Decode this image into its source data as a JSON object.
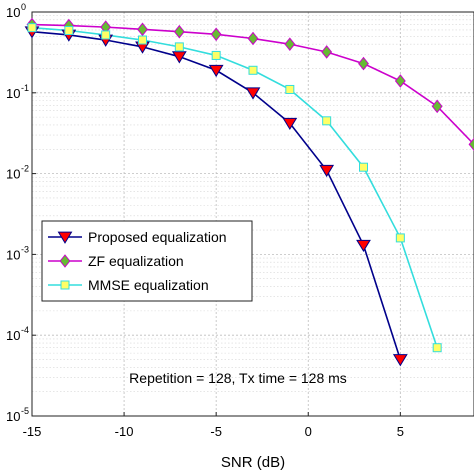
{
  "chart_data": {
    "type": "line",
    "xlabel": "SNR (dB)",
    "ylabel": "",
    "ylog": true,
    "xlim": [
      -15,
      9
    ],
    "ylim": [
      1e-05,
      1
    ],
    "xticks": [
      -15,
      -10,
      -5,
      0,
      5
    ],
    "xtick_labels": [
      "-15",
      "-10",
      "-5",
      "0",
      "5"
    ],
    "yticks": [
      {
        "value": 1,
        "base": "10",
        "exp": "0"
      },
      {
        "value": 0.1,
        "base": "10",
        "exp": "-1"
      },
      {
        "value": 0.01,
        "base": "10",
        "exp": "-2"
      },
      {
        "value": 0.001,
        "base": "10",
        "exp": "-3"
      },
      {
        "value": 0.0001,
        "base": "10",
        "exp": "-4"
      },
      {
        "value": 1e-05,
        "base": "10",
        "exp": "-5"
      }
    ],
    "grid": true,
    "legend_position": "middle-left",
    "annotation": "Repetition = 128, Tx time = 128 ms",
    "series": [
      {
        "name": "Proposed equalization",
        "color": "#00008B",
        "marker": "triangle-down",
        "marker_fill": "#ff0000",
        "x": [
          -15,
          -13,
          -11,
          -9,
          -7,
          -5,
          -3,
          -1,
          1,
          3,
          5
        ],
        "y": [
          0.57,
          0.52,
          0.45,
          0.37,
          0.28,
          0.19,
          0.1,
          0.042,
          0.011,
          0.0013,
          5e-05
        ]
      },
      {
        "name": "ZF equalization",
        "color": "#cc00cc",
        "marker": "diamond",
        "marker_fill": "#66bb33",
        "x": [
          -15,
          -13,
          -11,
          -9,
          -7,
          -5,
          -3,
          -1,
          1,
          3,
          5,
          7,
          9
        ],
        "y": [
          0.7,
          0.68,
          0.65,
          0.61,
          0.57,
          0.53,
          0.47,
          0.4,
          0.32,
          0.23,
          0.14,
          0.068,
          0.023
        ]
      },
      {
        "name": "MMSE equalization",
        "color": "#33dddd",
        "marker": "square",
        "marker_fill": "#ffff66",
        "x": [
          -15,
          -13,
          -11,
          -9,
          -7,
          -5,
          -3,
          -1,
          1,
          3,
          5,
          7
        ],
        "y": [
          0.64,
          0.59,
          0.52,
          0.45,
          0.37,
          0.29,
          0.19,
          0.11,
          0.045,
          0.012,
          0.0016,
          7e-05
        ]
      }
    ]
  }
}
